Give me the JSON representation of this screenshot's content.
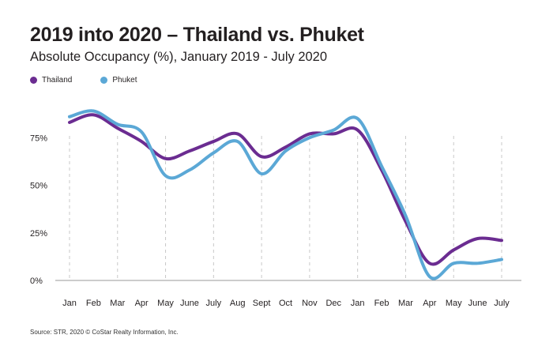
{
  "chart_data": {
    "type": "line",
    "title": "2019 into 2020 – Thailand vs. Phuket",
    "subtitle": "Absolute Occupancy (%), January 2019 - July 2020",
    "categories": [
      "Jan",
      "Feb",
      "Mar",
      "Apr",
      "May",
      "June",
      "July",
      "Aug",
      "Sept",
      "Oct",
      "Nov",
      "Dec",
      "Jan",
      "Feb",
      "Mar",
      "Apr",
      "May",
      "June",
      "July"
    ],
    "series": [
      {
        "name": "Thailand",
        "color": "#6b2c91",
        "values": [
          83,
          87,
          80,
          73,
          64,
          68,
          73,
          77,
          65,
          70,
          77,
          77,
          79,
          58,
          31,
          9,
          16,
          22,
          21
        ]
      },
      {
        "name": "Phuket",
        "color": "#5ba8d6",
        "values": [
          86,
          89,
          82,
          78,
          55,
          58,
          67,
          73,
          56,
          68,
          75,
          79,
          85,
          60,
          34,
          2,
          9,
          9,
          11
        ]
      }
    ],
    "yticks": [
      "0%",
      "25%",
      "50%",
      "75%"
    ],
    "ylim": [
      0,
      100
    ],
    "legend": "top-left",
    "grid": "dashed-vertical"
  },
  "source": "Source: STR, 2020 © CoStar Realty Information, Inc."
}
